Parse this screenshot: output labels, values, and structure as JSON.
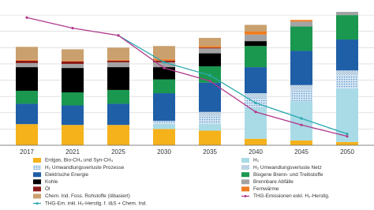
{
  "chart_data": {
    "type": "bar",
    "stacked": true,
    "grid": true,
    "categories": [
      "2017",
      "2021",
      "2025",
      "2030",
      "2035",
      "2040",
      "2045",
      "2050"
    ],
    "ylim": [
      0,
      8.2
    ],
    "yticks": [
      0,
      1,
      2,
      3,
      4,
      5,
      6,
      7,
      8
    ],
    "series": [
      {
        "name": "Erdgas, Bio-CH₄ und Syn-CH₄",
        "color": "#f5b21b",
        "values": [
          1.3,
          1.25,
          1.25,
          1.0,
          0.9,
          0.4,
          0.3,
          0.2
        ]
      },
      {
        "name": "H₂",
        "color": "#a9dbe6",
        "values": [
          0,
          0,
          0,
          0.3,
          0.4,
          1.9,
          2.4,
          3.3
        ]
      },
      {
        "name": "H₂ Umwandlungsverluste Prozesse",
        "color": "#7fb3da",
        "pattern": "dots",
        "values": [
          0,
          0,
          0,
          0.2,
          0.5,
          0.6,
          0.7,
          0.8
        ]
      },
      {
        "name": "H₂ Umwandlungsverluste Netz",
        "color": "#9ab9d3",
        "pattern": "hatch",
        "values": [
          0,
          0,
          0,
          0,
          0.25,
          0.3,
          0.3,
          0.3
        ]
      },
      {
        "name": "Elektrische Energie",
        "color": "#1f5fa8",
        "values": [
          1.25,
          1.2,
          1.3,
          1.7,
          1.8,
          1.6,
          2.1,
          1.9
        ]
      },
      {
        "name": "Biogene Brenn- und Treibstoffe",
        "color": "#1a9850",
        "values": [
          0.8,
          0.8,
          0.85,
          0.85,
          1.0,
          1.3,
          1.5,
          1.5
        ]
      },
      {
        "name": "Kohle",
        "color": "#000000",
        "values": [
          1.45,
          1.5,
          1.4,
          0.75,
          0.8,
          0.3,
          0,
          0
        ]
      },
      {
        "name": "Brennbare Abfälle",
        "color": "#a3a3a3",
        "values": [
          0.25,
          0.25,
          0.3,
          0.3,
          0.3,
          0.4,
          0.3,
          0.2
        ]
      },
      {
        "name": "Öl",
        "color": "#8b1a1a",
        "values": [
          0.15,
          0.15,
          0.1,
          0.1,
          0.05,
          0,
          0,
          0
        ]
      },
      {
        "name": "Fernwärme",
        "color": "#ef7d22",
        "values": [
          0.05,
          0.05,
          0.05,
          0.1,
          0.1,
          0.2,
          0.1,
          0
        ]
      },
      {
        "name": "Chem. Ind. Foss. Rohstoffe (ölbasiert)",
        "color": "#c9a06e",
        "values": [
          0.8,
          0.7,
          0.75,
          0.8,
          0.5,
          0.4,
          0,
          0
        ]
      }
    ],
    "lines": [
      {
        "name": "THG-Em. inkl. H₂-Herstlg. f. I&S + Chem. Ind.",
        "color": "#2aa9b1",
        "values": [
          null,
          null,
          6.75,
          5.1,
          4.3,
          2.6,
          1.65,
          0.7
        ]
      },
      {
        "name": "THG-Emissionen exkl. H₂-Herstlg.",
        "color": "#b03a8c",
        "values": [
          7.85,
          7.2,
          6.75,
          4.75,
          3.95,
          2.05,
          1.25,
          0.55
        ]
      }
    ]
  }
}
